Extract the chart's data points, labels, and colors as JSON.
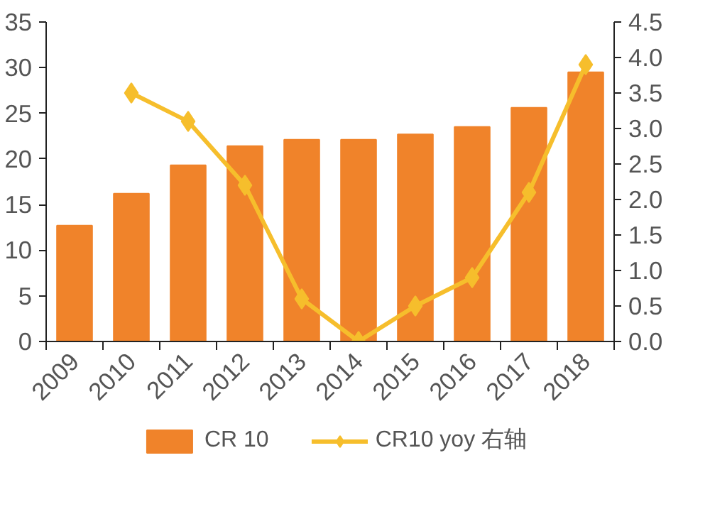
{
  "chart_data": {
    "type": "bar",
    "categories": [
      "2009",
      "2010",
      "2011",
      "2012",
      "2013",
      "2014",
      "2015",
      "2016",
      "2017",
      "2018"
    ],
    "series": [
      {
        "name": "CR 10",
        "color": "#f0832a",
        "values": [
          12.7,
          16.2,
          19.3,
          21.4,
          22.1,
          22.1,
          22.7,
          23.5,
          25.6,
          29.5
        ]
      },
      {
        "name": "CR10 yoy 右轴",
        "type": "line",
        "axis": "y2",
        "color": "#f6be2c",
        "values": [
          null,
          3.5,
          3.1,
          2.2,
          0.6,
          0.0,
          0.5,
          0.9,
          2.1,
          3.9
        ]
      }
    ],
    "ylim": [
      0,
      35
    ],
    "yticks": [
      0,
      5,
      10,
      15,
      20,
      25,
      30,
      35
    ],
    "y2lim": [
      0,
      4.5
    ],
    "y2ticks": [
      {
        "value": 0,
        "label": "0.0"
      },
      {
        "value": 0.5,
        "label": "0.5"
      },
      {
        "value": 1,
        "label": "1.0"
      },
      {
        "value": 1.5,
        "label": "1.5"
      },
      {
        "value": 2,
        "label": "2.0"
      },
      {
        "value": 2.5,
        "label": "2.5"
      },
      {
        "value": 3,
        "label": "3.0"
      },
      {
        "value": 3.5,
        "label": "3.5"
      },
      {
        "value": 4,
        "label": "4.0"
      },
      {
        "value": 4.5,
        "label": "4.5"
      }
    ],
    "grid": false,
    "legend": "bottom",
    "marker": "diamond",
    "line_style": "solid"
  }
}
